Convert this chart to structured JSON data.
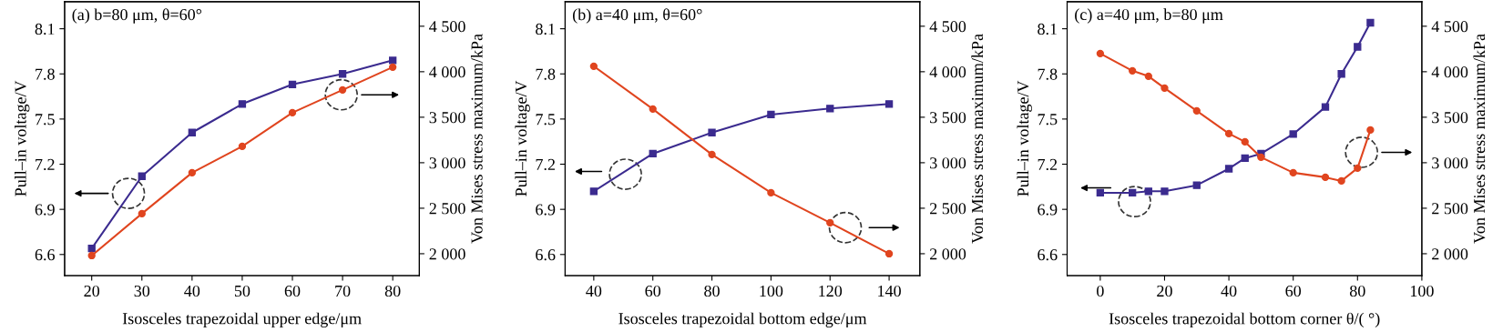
{
  "chart_data": [
    {
      "type": "line",
      "title": "(a) b=80 μm, θ=60°",
      "xlabel": "Isosceles trapezoidal upper edge/μm",
      "ylabel": "Pull–in voltage/V",
      "y2label": "Von Mises stress maximum/kPa",
      "x": [
        20,
        30,
        40,
        50,
        60,
        70,
        80
      ],
      "xlim": [
        14.6,
        85.3
      ],
      "xticks": [
        20,
        30,
        40,
        50,
        60,
        70,
        80
      ],
      "ylim": [
        6.46,
        8.28
      ],
      "yticks": [
        6.6,
        6.9,
        7.2,
        7.5,
        7.8,
        8.1
      ],
      "y2lim": [
        1760,
        4770
      ],
      "y2ticks": [
        {
          "value": 2000,
          "label": "2 000"
        },
        {
          "value": 2500,
          "label": "2 500"
        },
        {
          "value": 3000,
          "label": "3 000"
        },
        {
          "value": 3500,
          "label": "3 500"
        },
        {
          "value": 4000,
          "label": "4 000"
        },
        {
          "value": 4500,
          "label": "4 500"
        }
      ],
      "grid": false,
      "legend": false,
      "series": [
        {
          "color": "#3b2b8f",
          "marker": "square",
          "values": [
            6.64,
            7.12,
            7.41,
            7.6,
            7.73,
            7.8,
            7.89
          ]
        },
        {
          "color": "#e0451f",
          "marker": "circle",
          "axis": "y2",
          "values": [
            1980,
            2440,
            2890,
            3180,
            3550,
            3800,
            4050
          ]
        }
      ]
    },
    {
      "type": "line",
      "title": "(b) a=40 μm, θ=60°",
      "xlabel": "Isosceles trapezoidal bottom edge/μm",
      "ylabel": "Pull–in voltage/V",
      "y2label": "Von Mises stress maximum/kPa",
      "x": [
        40,
        60,
        80,
        100,
        120,
        140
      ],
      "xlim": [
        30.3,
        150.4
      ],
      "xticks": [
        40,
        60,
        80,
        100,
        120,
        140
      ],
      "ylim": [
        6.46,
        8.28
      ],
      "yticks": [
        6.6,
        6.9,
        7.2,
        7.5,
        7.8,
        8.1
      ],
      "y2lim": [
        1760,
        4770
      ],
      "y2ticks": [
        {
          "value": 2000,
          "label": "2 000"
        },
        {
          "value": 2500,
          "label": "2 500"
        },
        {
          "value": 3000,
          "label": "3 000"
        },
        {
          "value": 3500,
          "label": "3 500"
        },
        {
          "value": 4000,
          "label": "4 000"
        },
        {
          "value": 4500,
          "label": "4 500"
        }
      ],
      "grid": false,
      "legend": false,
      "series": [
        {
          "color": "#3b2b8f",
          "marker": "square",
          "values": [
            7.02,
            7.27,
            7.41,
            7.53,
            7.57,
            7.6
          ]
        },
        {
          "color": "#e0451f",
          "marker": "circle",
          "axis": "y2",
          "values": [
            4060,
            3590,
            3090,
            2670,
            2340,
            2000
          ]
        }
      ]
    },
    {
      "type": "line",
      "title": "(c) a=40 μm, b=80 μm",
      "xlabel": "Isosceles trapezoidal bottom corner θ/( °)",
      "ylabel": "Pull–in voltage/V",
      "y2label": "Von Mises stress maximum/kPa",
      "x": [
        0,
        10,
        15,
        20,
        30,
        40,
        45,
        50,
        60,
        70,
        75,
        80,
        84
      ],
      "xlim": [
        -10.3,
        100
      ],
      "xticks": [
        0,
        20,
        40,
        60,
        80,
        100
      ],
      "ylim": [
        6.46,
        8.28
      ],
      "yticks": [
        6.6,
        6.9,
        7.2,
        7.5,
        7.8,
        8.1
      ],
      "y2lim": [
        1760,
        4770
      ],
      "y2ticks": [
        {
          "value": 2000,
          "label": "2 000"
        },
        {
          "value": 2500,
          "label": "2 500"
        },
        {
          "value": 3000,
          "label": "3 000"
        },
        {
          "value": 3500,
          "label": "3 500"
        },
        {
          "value": 4000,
          "label": "4 000"
        },
        {
          "value": 4500,
          "label": "4 500"
        }
      ],
      "grid": false,
      "legend": false,
      "series": [
        {
          "color": "#3b2b8f",
          "marker": "square",
          "values": [
            7.01,
            7.01,
            7.02,
            7.02,
            7.06,
            7.17,
            7.24,
            7.27,
            7.4,
            7.58,
            7.8,
            7.98,
            8.14
          ]
        },
        {
          "color": "#e0451f",
          "marker": "circle",
          "axis": "y2",
          "values": [
            4200,
            4010,
            3950,
            3820,
            3570,
            3320,
            3230,
            3060,
            2890,
            2840,
            2800,
            2940,
            3360
          ]
        }
      ]
    }
  ]
}
